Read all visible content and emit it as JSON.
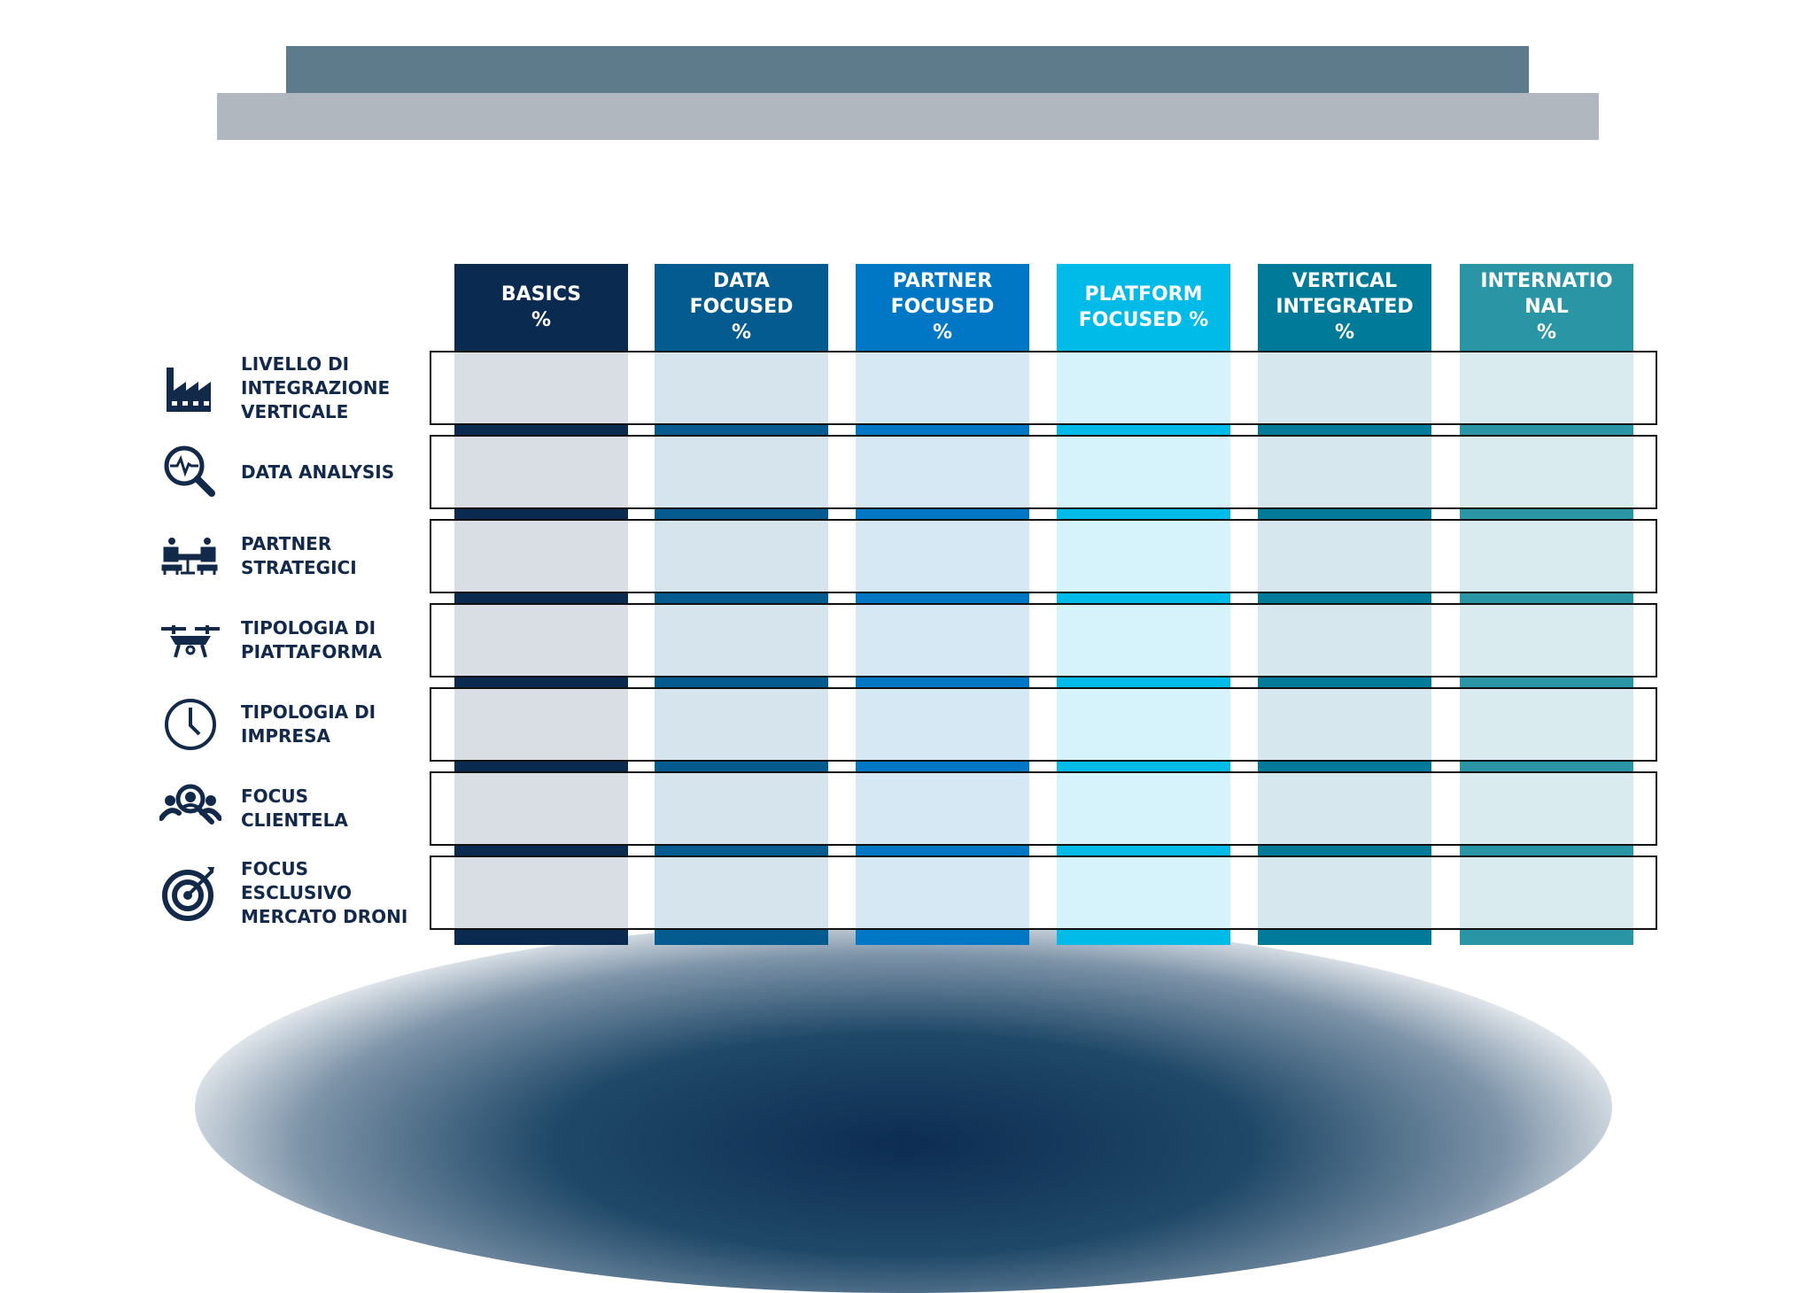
{
  "columns": [
    {
      "label_lines": [
        "BASICS",
        "%"
      ],
      "color": "#0b2a50",
      "tint": "#d9dde4"
    },
    {
      "label_lines": [
        "DATA",
        "FOCUSED",
        "%"
      ],
      "color": "#045b8f",
      "tint": "#d6e4ee"
    },
    {
      "label_lines": [
        "PARTNER",
        "FOCUSED",
        "%"
      ],
      "color": "#0077c4",
      "tint": "#d6e8f4"
    },
    {
      "label_lines": [
        "PLATFORM",
        "FOCUSED %"
      ],
      "color": "#00bbe8",
      "tint": "#d6f2fa"
    },
    {
      "label_lines": [
        "VERTICAL",
        "INTEGRATED",
        "%"
      ],
      "color": "#007a99",
      "tint": "#d6e8ed"
    },
    {
      "label_lines": [
        "INTERNATIO",
        "NAL",
        "%"
      ],
      "color": "#2a95a5",
      "tint": "#d9ebee"
    }
  ],
  "rows": [
    {
      "icon": "factory-icon",
      "label_lines": [
        "LIVELLO DI",
        "INTEGRAZIONE",
        "VERTICALE"
      ]
    },
    {
      "icon": "magnifier-pulse-icon",
      "label_lines": [
        "DATA ANALYSIS"
      ]
    },
    {
      "icon": "meeting-partners-icon",
      "label_lines": [
        "PARTNER",
        "STRATEGICI"
      ]
    },
    {
      "icon": "drone-icon",
      "label_lines": [
        "TIPOLOGIA DI",
        "PIATTAFORMA"
      ]
    },
    {
      "icon": "clock-icon",
      "label_lines": [
        "TIPOLOGIA DI",
        "IMPRESA"
      ]
    },
    {
      "icon": "customer-search-icon",
      "label_lines": [
        "FOCUS",
        "CLIENTELA"
      ]
    },
    {
      "icon": "target-icon",
      "label_lines": [
        "FOCUS",
        "ESCLUSIVO",
        "MERCATO DRONI"
      ]
    }
  ],
  "colors": {
    "label_text": "#12294a",
    "banner_dark": "#5e7b8c",
    "banner_light": "#b0b7bf"
  }
}
